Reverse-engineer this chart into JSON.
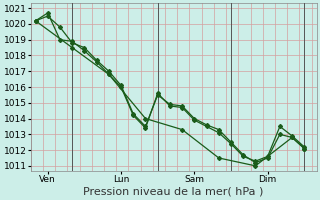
{
  "xlabel": "Pression niveau de la mer( hPa )",
  "bg_color": "#cceee8",
  "grid_color": "#e8c8c8",
  "line_color": "#1a5c1a",
  "marker_color": "#1a5c1a",
  "ylim": [
    1011,
    1021
  ],
  "yticks": [
    1011,
    1012,
    1013,
    1014,
    1015,
    1016,
    1017,
    1018,
    1019,
    1020,
    1021
  ],
  "day_labels": [
    "Ven",
    "Lun",
    "Sam",
    "Dim"
  ],
  "day_positions": [
    0.5,
    3.5,
    6.5,
    9.5
  ],
  "vline_positions": [
    1.5,
    5.0,
    8.0,
    11.0
  ],
  "series1_x": [
    0.0,
    0.5,
    1.0,
    1.5,
    2.0,
    2.5,
    3.0,
    3.5,
    4.0,
    4.5,
    5.0,
    5.5,
    6.0,
    6.5,
    7.0,
    7.5,
    8.0,
    8.5,
    9.0,
    9.5,
    10.0,
    10.5,
    11.0
  ],
  "series1_y": [
    1020.2,
    1020.5,
    1019.8,
    1018.8,
    1018.5,
    1017.7,
    1017.0,
    1016.1,
    1014.3,
    1013.5,
    1015.5,
    1014.9,
    1014.8,
    1014.0,
    1013.6,
    1013.3,
    1012.5,
    1011.7,
    1011.2,
    1011.5,
    1013.0,
    1012.8,
    1012.1
  ],
  "series2_x": [
    0.0,
    0.5,
    1.0,
    1.5,
    2.0,
    2.5,
    3.0,
    3.5,
    4.0,
    4.5,
    5.0,
    5.5,
    6.0,
    6.5,
    7.0,
    7.5,
    8.0,
    8.5,
    9.0,
    9.5,
    10.0,
    10.5,
    11.0
  ],
  "series2_y": [
    1020.2,
    1020.7,
    1019.0,
    1018.9,
    1018.3,
    1017.6,
    1016.8,
    1016.0,
    1014.2,
    1013.4,
    1015.6,
    1014.8,
    1014.7,
    1013.9,
    1013.5,
    1013.1,
    1012.4,
    1011.6,
    1011.3,
    1011.6,
    1013.5,
    1012.9,
    1012.2
  ],
  "series3_x": [
    0.0,
    1.5,
    3.0,
    4.5,
    6.0,
    7.5,
    9.0,
    10.5,
    11.0
  ],
  "series3_y": [
    1020.2,
    1018.5,
    1016.8,
    1014.0,
    1013.3,
    1011.5,
    1011.0,
    1012.8,
    1012.1
  ],
  "xlim": [
    -0.2,
    11.5
  ],
  "xlabel_fontsize": 8,
  "tick_fontsize": 6.5,
  "lw": 0.9,
  "ms": 2.0
}
